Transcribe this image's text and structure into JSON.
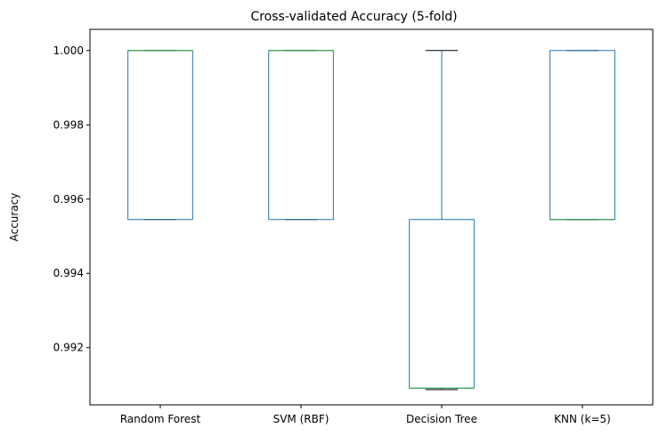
{
  "chart_data": {
    "type": "box",
    "title": "Cross-validated Accuracy (5-fold)",
    "xlabel": "",
    "ylabel": "Accuracy",
    "categories": [
      "Random Forest",
      "SVM (RBF)",
      "Decision Tree",
      "KNN (k=5)"
    ],
    "ylim": [
      0.99046,
      1.00057
    ],
    "yticks": [
      0.992,
      0.994,
      0.996,
      0.998,
      1.0
    ],
    "ytick_labels": [
      "0.992",
      "0.994",
      "0.996",
      "0.998",
      "1.000"
    ],
    "grid": false,
    "boxes": [
      {
        "name": "Random Forest",
        "whislo": 0.99545,
        "q1": 0.99545,
        "median": 1.0,
        "q3": 1.0,
        "whishi": 1.0
      },
      {
        "name": "SVM (RBF)",
        "whislo": 0.99545,
        "q1": 0.99545,
        "median": 1.0,
        "q3": 1.0,
        "whishi": 1.0
      },
      {
        "name": "Decision Tree",
        "whislo": 0.99087,
        "q1": 0.99091,
        "median": 0.99091,
        "q3": 0.99545,
        "whishi": 1.0
      },
      {
        "name": "KNN (k=5)",
        "whislo": 0.99545,
        "q1": 0.99545,
        "median": 0.99545,
        "q3": 1.0,
        "whishi": 1.0
      }
    ],
    "colors": {
      "box": "#1f77b4",
      "median": "#2ca02c",
      "cap": "#000000",
      "axis": "#000000"
    }
  }
}
